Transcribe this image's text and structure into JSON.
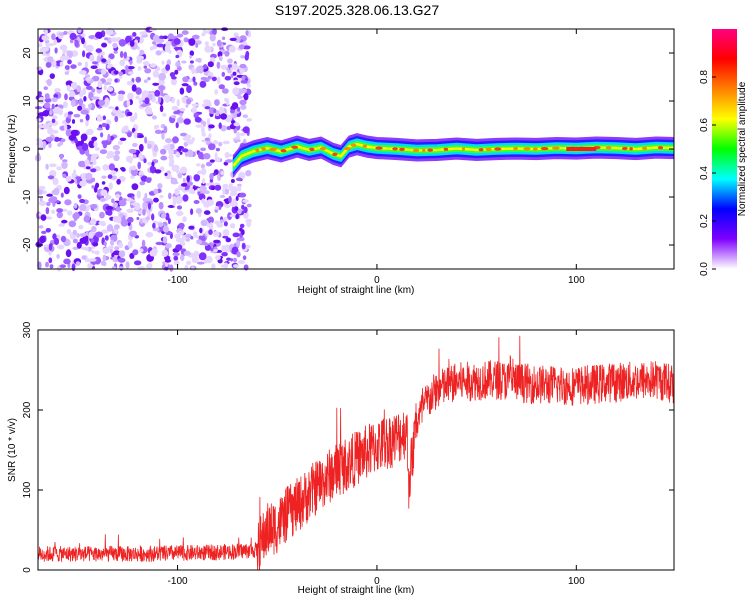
{
  "title": "S197.2025.328.06.13.G27",
  "chart_data": [
    {
      "type": "heatmap",
      "name": "spectrogram",
      "xlabel": "Height of straight line (km)",
      "ylabel": "Frequency (Hz)",
      "xlim": [
        -170,
        149
      ],
      "ylim": [
        -25,
        25
      ],
      "xticks": [
        -100,
        0,
        100
      ],
      "yticks": [
        -20,
        -10,
        0,
        10,
        20
      ],
      "colorbar": {
        "label": "Normalized spectral amplitude",
        "range": [
          0,
          1
        ],
        "ticks": [
          0.0,
          0.2,
          0.4,
          0.6,
          0.8
        ],
        "tick_labels": [
          "0.0",
          "0.2",
          "0.4",
          "0.6",
          "0.8"
        ],
        "colors": [
          "#ffffff",
          "#7f00ff",
          "#0000ff",
          "#00ffff",
          "#00ff00",
          "#ffff00",
          "#ff8000",
          "#ff0000",
          "#ff0080"
        ]
      },
      "noise_region": {
        "x_range": [
          -170,
          -64
        ],
        "freq_range": [
          -25,
          25
        ],
        "amplitude": 0.1
      },
      "signal_trace": {
        "x": [
          -72,
          -68,
          -62,
          -55,
          -48,
          -40,
          -34,
          -28,
          -22,
          -18,
          -14,
          -10,
          -5,
          0,
          10,
          20,
          30,
          40,
          50,
          60,
          70,
          80,
          90,
          100,
          110,
          120,
          130,
          140,
          149
        ],
        "freq": [
          -3.5,
          -1.5,
          -0.5,
          0.2,
          -0.5,
          0.5,
          -0.2,
          0.3,
          -1.0,
          -1.5,
          0.5,
          1.0,
          0.5,
          0.2,
          0.0,
          -0.3,
          -0.2,
          0.1,
          -0.2,
          0.0,
          0.1,
          0.0,
          0.2,
          0.1,
          0.3,
          0.2,
          0.0,
          0.3,
          0.2
        ]
      }
    },
    {
      "type": "line",
      "name": "snr",
      "xlabel": "Height of straight line (km)",
      "ylabel": "SNR (10 * v/v)",
      "xlim": [
        -170,
        149
      ],
      "ylim": [
        0,
        300
      ],
      "xticks": [
        -100,
        0,
        100
      ],
      "yticks": [
        0,
        100,
        200,
        300
      ],
      "color": "#ee2222",
      "trend": {
        "x": [
          -170,
          -120,
          -80,
          -60,
          -55,
          -50,
          -45,
          -40,
          -30,
          -20,
          -10,
          0,
          10,
          15,
          16,
          20,
          25,
          30,
          40,
          60,
          80,
          100,
          120,
          140,
          149
        ],
        "y": [
          20,
          20,
          22,
          25,
          50,
          55,
          70,
          80,
          105,
          125,
          140,
          155,
          165,
          175,
          110,
          185,
          210,
          225,
          235,
          238,
          232,
          230,
          235,
          238,
          232
        ]
      },
      "noise_amplitude": [
        {
          "x_range": [
            -170,
            -60
          ],
          "amp": 10
        },
        {
          "x_range": [
            -60,
            20
          ],
          "amp": 35
        },
        {
          "x_range": [
            20,
            149
          ],
          "amp": 25
        }
      ]
    }
  ]
}
